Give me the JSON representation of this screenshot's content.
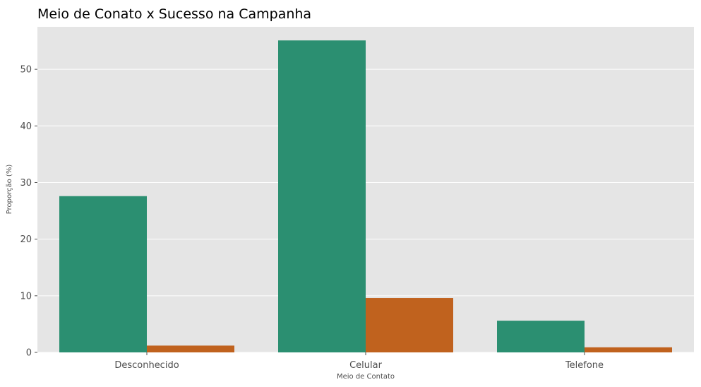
{
  "chart_data": {
    "type": "bar",
    "title": "Meio de Conato x Sucesso na Campanha",
    "xlabel": "Meio de Contato",
    "ylabel": "Proporção (%)",
    "categories": [
      "Desconhecido",
      "Celular",
      "Telefone"
    ],
    "series": [
      {
        "values": [
          27.6,
          55.1,
          5.6
        ],
        "color": "#2b8f71"
      },
      {
        "values": [
          1.2,
          9.6,
          0.9
        ],
        "color": "#c0621e"
      }
    ],
    "ylim": [
      0,
      57.5
    ],
    "yticks": [
      "0",
      "10",
      "20",
      "30",
      "40",
      "50"
    ],
    "grid": true,
    "background_color": "#e5e5e5",
    "grid_color": "#ffffff",
    "legend": "none"
  }
}
